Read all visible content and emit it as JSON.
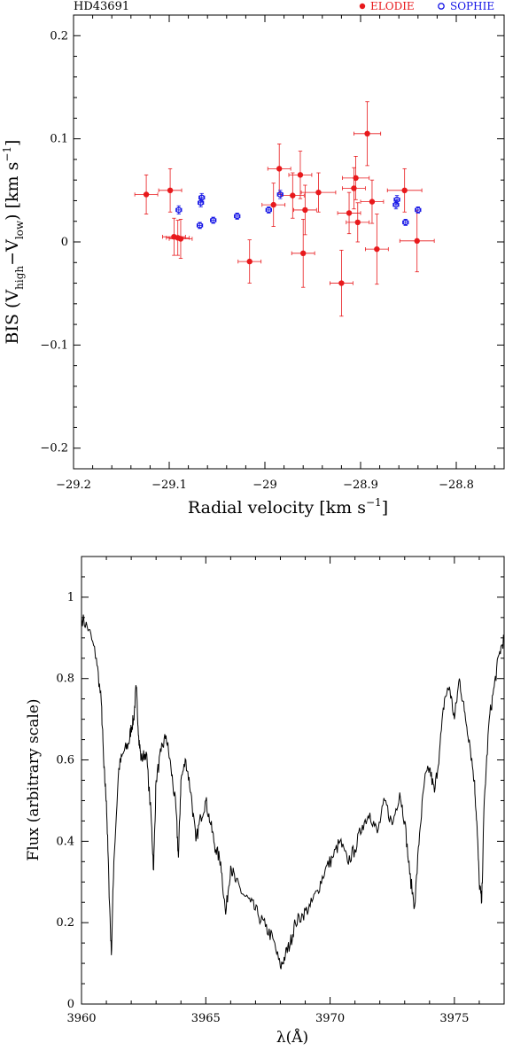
{
  "chart_data": [
    {
      "type": "scatter",
      "title": "HD43691",
      "xlabel": "Radial velocity [km s",
      "xlabel_sup": "−1",
      "xlabel_end": "]",
      "ylabel_pre": "BIS (V",
      "ylabel_sub1": "high",
      "ylabel_mid": "−V",
      "ylabel_sub2": "low",
      "ylabel_post": ") [km s",
      "ylabel_sup": "−1",
      "ylabel_end": "]",
      "xlim": [
        -29.2,
        -28.75
      ],
      "ylim": [
        -0.22,
        0.22
      ],
      "xticks": [
        -29.2,
        -29.1,
        -29,
        -28.9,
        -28.8
      ],
      "xtick_labels": [
        "−29.2",
        "−29.1",
        "−29",
        "−28.9",
        "−28.8"
      ],
      "yticks": [
        -0.2,
        -0.1,
        0,
        0.1,
        0.2
      ],
      "ytick_labels": [
        "−0.2",
        "−0.1",
        "0",
        "0.1",
        "0.2"
      ],
      "legend_position": "top-right",
      "series": [
        {
          "name": "ELODIE",
          "color": "#e8191c",
          "marker": "filled-circle",
          "points": [
            {
              "x": -29.124,
              "y": 0.046,
              "xerr": 0.012,
              "yerr": 0.019
            },
            {
              "x": -29.099,
              "y": 0.05,
              "xerr": 0.012,
              "yerr": 0.021
            },
            {
              "x": -29.095,
              "y": 0.005,
              "xerr": 0.012,
              "yerr": 0.018
            },
            {
              "x": -29.091,
              "y": 0.004,
              "xerr": 0.012,
              "yerr": 0.017
            },
            {
              "x": -29.088,
              "y": 0.003,
              "xerr": 0.012,
              "yerr": 0.019
            },
            {
              "x": -29.016,
              "y": -0.019,
              "xerr": 0.012,
              "yerr": 0.021
            },
            {
              "x": -28.991,
              "y": 0.036,
              "xerr": 0.012,
              "yerr": 0.021
            },
            {
              "x": -28.985,
              "y": 0.071,
              "xerr": 0.012,
              "yerr": 0.024
            },
            {
              "x": -28.971,
              "y": 0.045,
              "xerr": 0.012,
              "yerr": 0.022
            },
            {
              "x": -28.963,
              "y": 0.065,
              "xerr": 0.012,
              "yerr": 0.023
            },
            {
              "x": -28.96,
              "y": -0.011,
              "xerr": 0.012,
              "yerr": 0.033
            },
            {
              "x": -28.958,
              "y": 0.031,
              "xerr": 0.012,
              "yerr": 0.024
            },
            {
              "x": -28.944,
              "y": 0.048,
              "xerr": 0.018,
              "yerr": 0.019
            },
            {
              "x": -28.92,
              "y": -0.04,
              "xerr": 0.012,
              "yerr": 0.032
            },
            {
              "x": -28.912,
              "y": 0.028,
              "xerr": 0.012,
              "yerr": 0.02
            },
            {
              "x": -28.907,
              "y": 0.052,
              "xerr": 0.012,
              "yerr": 0.02
            },
            {
              "x": -28.905,
              "y": 0.062,
              "xerr": 0.014,
              "yerr": 0.021
            },
            {
              "x": -28.903,
              "y": 0.019,
              "xerr": 0.012,
              "yerr": 0.019
            },
            {
              "x": -28.893,
              "y": 0.105,
              "xerr": 0.014,
              "yerr": 0.031
            },
            {
              "x": -28.888,
              "y": 0.039,
              "xerr": 0.012,
              "yerr": 0.021
            },
            {
              "x": -28.883,
              "y": -0.007,
              "xerr": 0.012,
              "yerr": 0.034
            },
            {
              "x": -28.854,
              "y": 0.05,
              "xerr": 0.018,
              "yerr": 0.021
            },
            {
              "x": -28.841,
              "y": 0.001,
              "xerr": 0.018,
              "yerr": 0.03
            }
          ]
        },
        {
          "name": "SOPHIE",
          "color": "#1515e6",
          "marker": "open-circle",
          "points": [
            {
              "x": -29.09,
              "y": 0.031,
              "xerr": 0.003,
              "yerr": 0.004
            },
            {
              "x": -29.068,
              "y": 0.016,
              "xerr": 0.003,
              "yerr": 0.003
            },
            {
              "x": -29.067,
              "y": 0.038,
              "xerr": 0.003,
              "yerr": 0.004
            },
            {
              "x": -29.066,
              "y": 0.043,
              "xerr": 0.003,
              "yerr": 0.004
            },
            {
              "x": -29.054,
              "y": 0.021,
              "xerr": 0.003,
              "yerr": 0.003
            },
            {
              "x": -29.029,
              "y": 0.025,
              "xerr": 0.003,
              "yerr": 0.003
            },
            {
              "x": -28.996,
              "y": 0.031,
              "xerr": 0.003,
              "yerr": 0.003
            },
            {
              "x": -28.984,
              "y": 0.046,
              "xerr": 0.003,
              "yerr": 0.004
            },
            {
              "x": -28.863,
              "y": 0.036,
              "xerr": 0.003,
              "yerr": 0.004
            },
            {
              "x": -28.862,
              "y": 0.041,
              "xerr": 0.003,
              "yerr": 0.004
            },
            {
              "x": -28.853,
              "y": 0.019,
              "xerr": 0.003,
              "yerr": 0.003
            },
            {
              "x": -28.84,
              "y": 0.031,
              "xerr": 0.003,
              "yerr": 0.003
            }
          ]
        }
      ]
    },
    {
      "type": "line",
      "title": "",
      "xlabel": "λ(Å)",
      "ylabel": "Flux (arbitrary scale)",
      "xlim": [
        3960,
        3977
      ],
      "ylim": [
        0,
        1.1
      ],
      "xticks": [
        3960,
        3965,
        3970,
        3975
      ],
      "xtick_labels": [
        "3960",
        "3965",
        "3970",
        "3975"
      ],
      "yticks": [
        0,
        0.2,
        0.4,
        0.6,
        0.8,
        1
      ],
      "ytick_labels": [
        "0",
        "0.2",
        "0.4",
        "0.6",
        "0.8",
        "1"
      ],
      "grid": false,
      "series": [
        {
          "color": "#000000",
          "x": [
            3960.0,
            3960.3,
            3960.6,
            3960.8,
            3960.9,
            3961.0,
            3961.1,
            3961.2,
            3961.3,
            3961.5,
            3961.7,
            3961.9,
            3962.0,
            3962.1,
            3962.2,
            3962.3,
            3962.4,
            3962.6,
            3962.8,
            3962.9,
            3963.0,
            3963.2,
            3963.4,
            3963.6,
            3963.8,
            3963.9,
            3964.0,
            3964.2,
            3964.4,
            3964.6,
            3964.8,
            3965.0,
            3965.2,
            3965.4,
            3965.6,
            3965.8,
            3966.0,
            3966.2,
            3966.5,
            3966.8,
            3967.1,
            3967.4,
            3967.7,
            3968.0,
            3968.2,
            3968.4,
            3968.6,
            3968.9,
            3969.2,
            3969.5,
            3969.8,
            3970.1,
            3970.4,
            3970.7,
            3971.0,
            3971.3,
            3971.6,
            3971.9,
            3972.2,
            3972.5,
            3972.8,
            3973.0,
            3973.2,
            3973.4,
            3973.6,
            3973.8,
            3974.0,
            3974.2,
            3974.4,
            3974.6,
            3974.8,
            3975.0,
            3975.2,
            3975.4,
            3975.6,
            3975.8,
            3975.9,
            3976.0,
            3976.1,
            3976.2,
            3976.4,
            3976.6,
            3976.8,
            3977.0
          ],
          "y": [
            0.95,
            0.92,
            0.85,
            0.74,
            0.58,
            0.5,
            0.3,
            0.12,
            0.35,
            0.58,
            0.62,
            0.64,
            0.68,
            0.7,
            0.78,
            0.66,
            0.6,
            0.62,
            0.46,
            0.33,
            0.55,
            0.62,
            0.66,
            0.58,
            0.48,
            0.36,
            0.55,
            0.6,
            0.52,
            0.4,
            0.46,
            0.5,
            0.44,
            0.38,
            0.35,
            0.22,
            0.34,
            0.3,
            0.27,
            0.25,
            0.22,
            0.19,
            0.16,
            0.09,
            0.12,
            0.15,
            0.2,
            0.22,
            0.24,
            0.28,
            0.33,
            0.36,
            0.4,
            0.35,
            0.38,
            0.44,
            0.47,
            0.42,
            0.5,
            0.44,
            0.52,
            0.45,
            0.32,
            0.24,
            0.42,
            0.55,
            0.58,
            0.52,
            0.62,
            0.75,
            0.78,
            0.7,
            0.8,
            0.72,
            0.65,
            0.55,
            0.45,
            0.3,
            0.25,
            0.5,
            0.7,
            0.78,
            0.86,
            0.9
          ]
        }
      ]
    }
  ]
}
